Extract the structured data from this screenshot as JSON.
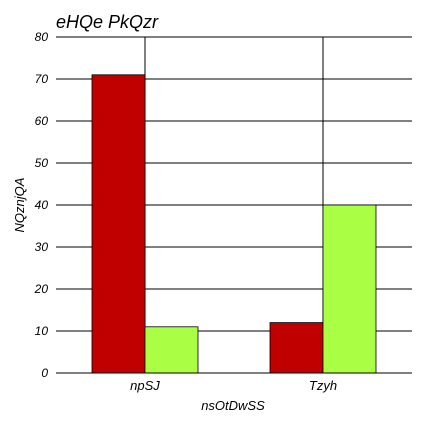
{
  "chart_data": {
    "type": "bar",
    "title": "eHQe PkQzr",
    "xlabel": "nsOtDwSS",
    "ylabel": "NQznjQA",
    "categories": [
      "npSJ",
      "Tzyh"
    ],
    "series": [
      {
        "values": [
          71,
          12
        ],
        "color": "#c00000"
      },
      {
        "values": [
          11,
          40
        ],
        "color": "#aaff44"
      }
    ],
    "ylim": [
      0,
      80
    ],
    "yticks": [
      0,
      10,
      20,
      30,
      40,
      50,
      60,
      70,
      80
    ],
    "grid": true
  }
}
